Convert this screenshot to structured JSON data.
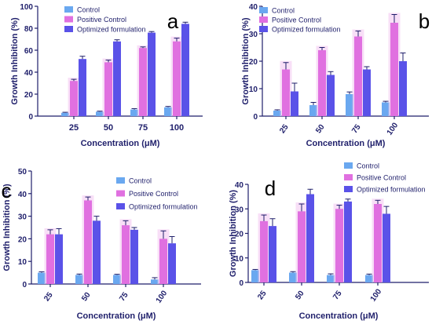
{
  "colors": {
    "control": "#6aa8f0",
    "positive": "#e070e0",
    "optimized": "#5a52e8",
    "axis": "#1f1f6b",
    "halo": "#f3c4f0",
    "errorbar": "#1f1f6b"
  },
  "chart_data": [
    {
      "type": "bar",
      "panel_label": "a",
      "categories": [
        "25",
        "50",
        "75",
        "100"
      ],
      "xlabel": "Concentration (μM)",
      "ylabel": "Growth Inhibition (%)",
      "ylim": [
        0,
        100
      ],
      "yticks": [
        "0",
        "20",
        "40",
        "60",
        "80",
        "100"
      ],
      "legend": "top-center",
      "series": [
        {
          "name": "Control",
          "values": [
            3,
            4,
            6,
            8
          ],
          "errors": [
            0.5,
            0.5,
            0.8,
            0.8
          ]
        },
        {
          "name": "Positive Control",
          "values": [
            32,
            49,
            62,
            68
          ],
          "errors": [
            1.5,
            2,
            1,
            3
          ]
        },
        {
          "name": "Optimized formulation",
          "values": [
            52,
            68,
            76,
            84
          ],
          "errors": [
            2.5,
            1.5,
            1,
            1.5
          ]
        }
      ]
    },
    {
      "type": "bar",
      "panel_label": "b",
      "categories": [
        "25",
        "50",
        "75",
        "100"
      ],
      "xlabel": "Concentration (μM)",
      "ylabel": "Growth Inhibition (%)",
      "ylim": [
        0,
        40
      ],
      "yticks": [
        "0",
        "10",
        "20",
        "30",
        "40"
      ],
      "legend": "top-center",
      "series": [
        {
          "name": "Control",
          "values": [
            2,
            4,
            8,
            5
          ],
          "errors": [
            0.3,
            1,
            0.8,
            0.4
          ]
        },
        {
          "name": "Positive Control",
          "values": [
            17,
            24,
            29,
            34
          ],
          "errors": [
            2.5,
            1,
            2,
            3
          ]
        },
        {
          "name": "Optimized formulation",
          "values": [
            9,
            15,
            17,
            20
          ],
          "errors": [
            3,
            1.2,
            1,
            3
          ]
        }
      ]
    },
    {
      "type": "bar",
      "panel_label": "c",
      "categories": [
        "25",
        "50",
        "75",
        "100"
      ],
      "xlabel": "Concentration (μM)",
      "ylabel": "Growth Inhibition (%)",
      "ylim": [
        0,
        50
      ],
      "yticks": [
        "0",
        "10",
        "20",
        "30",
        "40",
        "50"
      ],
      "legend": "top-right",
      "series": [
        {
          "name": "Control",
          "values": [
            5,
            4,
            4,
            2
          ],
          "errors": [
            0.4,
            0.4,
            0.3,
            0.8
          ]
        },
        {
          "name": "Positive Control",
          "values": [
            22,
            37,
            26,
            20
          ],
          "errors": [
            2,
            1.5,
            2,
            3.5
          ]
        },
        {
          "name": "Optimized formulation",
          "values": [
            22,
            28,
            24,
            18
          ],
          "errors": [
            2.5,
            2,
            1,
            3
          ]
        }
      ]
    },
    {
      "type": "bar",
      "panel_label": "d",
      "categories": [
        "25",
        "50",
        "75",
        "100"
      ],
      "xlabel": "Concentration (μM)",
      "ylabel": "Growth Inhibition (%)",
      "ylim": [
        0,
        40
      ],
      "yticks": [
        "0",
        "10",
        "20",
        "30",
        "40"
      ],
      "legend": "top-right",
      "series": [
        {
          "name": "Control",
          "values": [
            5,
            4,
            3,
            3
          ],
          "errors": [
            0.3,
            0.4,
            0.5,
            0.4
          ]
        },
        {
          "name": "Positive Control",
          "values": [
            25,
            29,
            30,
            32
          ],
          "errors": [
            2.5,
            3,
            1.5,
            1.5
          ]
        },
        {
          "name": "Optimized formulation",
          "values": [
            23,
            36,
            33,
            28
          ],
          "errors": [
            3,
            2,
            1,
            3
          ]
        }
      ]
    }
  ]
}
